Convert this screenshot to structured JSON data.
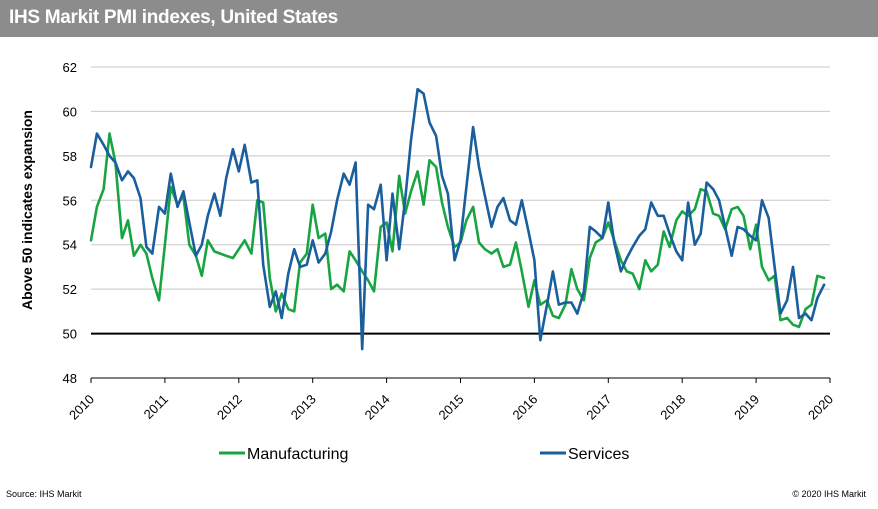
{
  "header": {
    "title": "IHS Markit PMI indexes, United States"
  },
  "footer": {
    "source": "Source: IHS Markit",
    "copyright": "© 2020 IHS Markit"
  },
  "chart_data": {
    "type": "line",
    "title": "IHS Markit PMI indexes, United States",
    "ylabel": "Above 50 indicates expansion",
    "xlabel": "",
    "ylim": [
      48,
      62
    ],
    "yticks": [
      48,
      50,
      52,
      54,
      56,
      58,
      60,
      62
    ],
    "xlim": [
      2010,
      2020
    ],
    "xticks": [
      "2010",
      "2011",
      "2012",
      "2013",
      "2014",
      "2015",
      "2016",
      "2017",
      "2018",
      "2019",
      "2020"
    ],
    "reference_line": 50,
    "grid": "horizontal",
    "legend_position": "bottom",
    "series": [
      {
        "name": "Manufacturing",
        "color": "#19a442",
        "x": [
          2010.0,
          2010.08,
          2010.17,
          2010.25,
          2010.33,
          2010.42,
          2010.5,
          2010.58,
          2010.67,
          2010.75,
          2010.83,
          2010.92,
          2011.0,
          2011.08,
          2011.17,
          2011.25,
          2011.33,
          2011.42,
          2011.5,
          2011.58,
          2011.67,
          2011.75,
          2011.83,
          2011.92,
          2012.0,
          2012.08,
          2012.17,
          2012.25,
          2012.33,
          2012.42,
          2012.5,
          2012.58,
          2012.67,
          2012.75,
          2012.83,
          2012.92,
          2013.0,
          2013.08,
          2013.17,
          2013.25,
          2013.33,
          2013.42,
          2013.5,
          2013.58,
          2013.67,
          2013.75,
          2013.83,
          2013.92,
          2014.0,
          2014.08,
          2014.17,
          2014.25,
          2014.33,
          2014.42,
          2014.5,
          2014.58,
          2014.67,
          2014.75,
          2014.83,
          2014.92,
          2015.0,
          2015.08,
          2015.17,
          2015.25,
          2015.33,
          2015.42,
          2015.5,
          2015.58,
          2015.67,
          2015.75,
          2015.83,
          2015.92,
          2016.0,
          2016.08,
          2016.17,
          2016.25,
          2016.33,
          2016.42,
          2016.5,
          2016.58,
          2016.67,
          2016.75,
          2016.83,
          2016.92,
          2017.0,
          2017.08,
          2017.17,
          2017.25,
          2017.33,
          2017.42,
          2017.5,
          2017.58,
          2017.67,
          2017.75,
          2017.83,
          2017.92,
          2018.0,
          2018.08,
          2018.17,
          2018.25,
          2018.33,
          2018.42,
          2018.5,
          2018.58,
          2018.67,
          2018.75,
          2018.83,
          2018.92,
          2019.0,
          2019.08,
          2019.17,
          2019.25,
          2019.33,
          2019.42,
          2019.5,
          2019.58,
          2019.67,
          2019.75,
          2019.83,
          2019.92
        ],
        "values": [
          54.2,
          55.7,
          56.5,
          59.0,
          57.7,
          54.3,
          55.1,
          53.5,
          54.0,
          53.6,
          52.5,
          51.5,
          54.0,
          56.6,
          55.8,
          56.2,
          54.0,
          53.5,
          52.6,
          54.2,
          53.7,
          53.6,
          53.5,
          53.4,
          53.8,
          54.2,
          53.6,
          56.0,
          55.9,
          52.5,
          51.0,
          51.8,
          51.1,
          51.0,
          53.2,
          53.6,
          55.8,
          54.3,
          54.5,
          52.0,
          52.2,
          51.9,
          53.7,
          53.3,
          52.8,
          52.4,
          51.9,
          54.8,
          55.0,
          53.7,
          57.1,
          55.4,
          56.4,
          57.3,
          55.8,
          57.8,
          57.5,
          55.9,
          54.8,
          53.9,
          54.1,
          55.1,
          55.7,
          54.1,
          53.8,
          53.6,
          53.8,
          53.0,
          53.1,
          54.1,
          52.8,
          51.2,
          52.4,
          51.3,
          51.5,
          50.8,
          50.7,
          51.3,
          52.9,
          52.0,
          51.5,
          53.4,
          54.1,
          54.3,
          55.0,
          54.2,
          53.3,
          52.8,
          52.7,
          52.0,
          53.3,
          52.8,
          53.1,
          54.6,
          53.9,
          55.1,
          55.5,
          55.3,
          55.6,
          56.5,
          56.4,
          55.4,
          55.3,
          54.7,
          55.6,
          55.7,
          55.3,
          53.8,
          54.9,
          53.0,
          52.4,
          52.6,
          50.6,
          50.7,
          50.4,
          50.3,
          51.1,
          51.3,
          52.6,
          52.5
        ]
      },
      {
        "name": "Services",
        "color": "#1a5e9e",
        "x": [
          2010.0,
          2010.08,
          2010.17,
          2010.25,
          2010.33,
          2010.42,
          2010.5,
          2010.58,
          2010.67,
          2010.75,
          2010.83,
          2010.92,
          2011.0,
          2011.08,
          2011.17,
          2011.25,
          2011.33,
          2011.42,
          2011.5,
          2011.58,
          2011.67,
          2011.75,
          2011.83,
          2011.92,
          2012.0,
          2012.08,
          2012.17,
          2012.25,
          2012.33,
          2012.42,
          2012.5,
          2012.58,
          2012.67,
          2012.75,
          2012.83,
          2012.92,
          2013.0,
          2013.08,
          2013.17,
          2013.25,
          2013.33,
          2013.42,
          2013.5,
          2013.58,
          2013.67,
          2013.75,
          2013.83,
          2013.92,
          2014.0,
          2014.08,
          2014.17,
          2014.25,
          2014.33,
          2014.42,
          2014.5,
          2014.58,
          2014.67,
          2014.75,
          2014.83,
          2014.92,
          2015.0,
          2015.08,
          2015.17,
          2015.25,
          2015.33,
          2015.42,
          2015.5,
          2015.58,
          2015.67,
          2015.75,
          2015.83,
          2015.92,
          2016.0,
          2016.08,
          2016.17,
          2016.25,
          2016.33,
          2016.42,
          2016.5,
          2016.58,
          2016.67,
          2016.75,
          2016.83,
          2016.92,
          2017.0,
          2017.08,
          2017.17,
          2017.25,
          2017.33,
          2017.42,
          2017.5,
          2017.58,
          2017.67,
          2017.75,
          2017.83,
          2017.92,
          2018.0,
          2018.08,
          2018.17,
          2018.25,
          2018.33,
          2018.42,
          2018.5,
          2018.58,
          2018.67,
          2018.75,
          2018.83,
          2018.92,
          2019.0,
          2019.08,
          2019.17,
          2019.25,
          2019.33,
          2019.42,
          2019.5,
          2019.58,
          2019.67,
          2019.75,
          2019.83,
          2019.92
        ],
        "values": [
          57.5,
          59.0,
          58.5,
          58.0,
          57.7,
          56.9,
          57.3,
          57.0,
          56.1,
          53.9,
          53.6,
          55.7,
          55.4,
          57.2,
          55.7,
          56.4,
          55.0,
          53.5,
          54.0,
          55.3,
          56.3,
          55.3,
          57.0,
          58.3,
          57.3,
          58.5,
          56.8,
          56.9,
          53.1,
          51.2,
          51.9,
          50.7,
          52.7,
          53.8,
          53.0,
          53.1,
          54.2,
          53.2,
          53.6,
          54.6,
          56.0,
          57.2,
          56.7,
          57.7,
          49.3,
          55.8,
          55.6,
          56.7,
          53.3,
          56.3,
          53.8,
          56.0,
          58.7,
          61.0,
          60.8,
          59.5,
          58.9,
          57.1,
          56.3,
          53.3,
          54.2,
          56.6,
          59.3,
          57.5,
          56.2,
          54.8,
          55.7,
          56.1,
          55.1,
          54.9,
          56.0,
          54.6,
          53.3,
          49.7,
          51.3,
          52.8,
          51.3,
          51.4,
          51.4,
          50.9,
          51.9,
          54.8,
          54.6,
          54.3,
          55.9,
          54.1,
          52.8,
          53.4,
          53.9,
          54.4,
          54.7,
          55.9,
          55.3,
          55.3,
          54.5,
          53.7,
          53.3,
          55.9,
          54.0,
          54.5,
          56.8,
          56.5,
          56.0,
          54.8,
          53.5,
          54.8,
          54.7,
          54.4,
          54.2,
          56.0,
          55.2,
          53.0,
          50.9,
          51.5,
          53.0,
          50.7,
          50.9,
          50.6,
          51.6,
          52.2
        ]
      }
    ]
  }
}
